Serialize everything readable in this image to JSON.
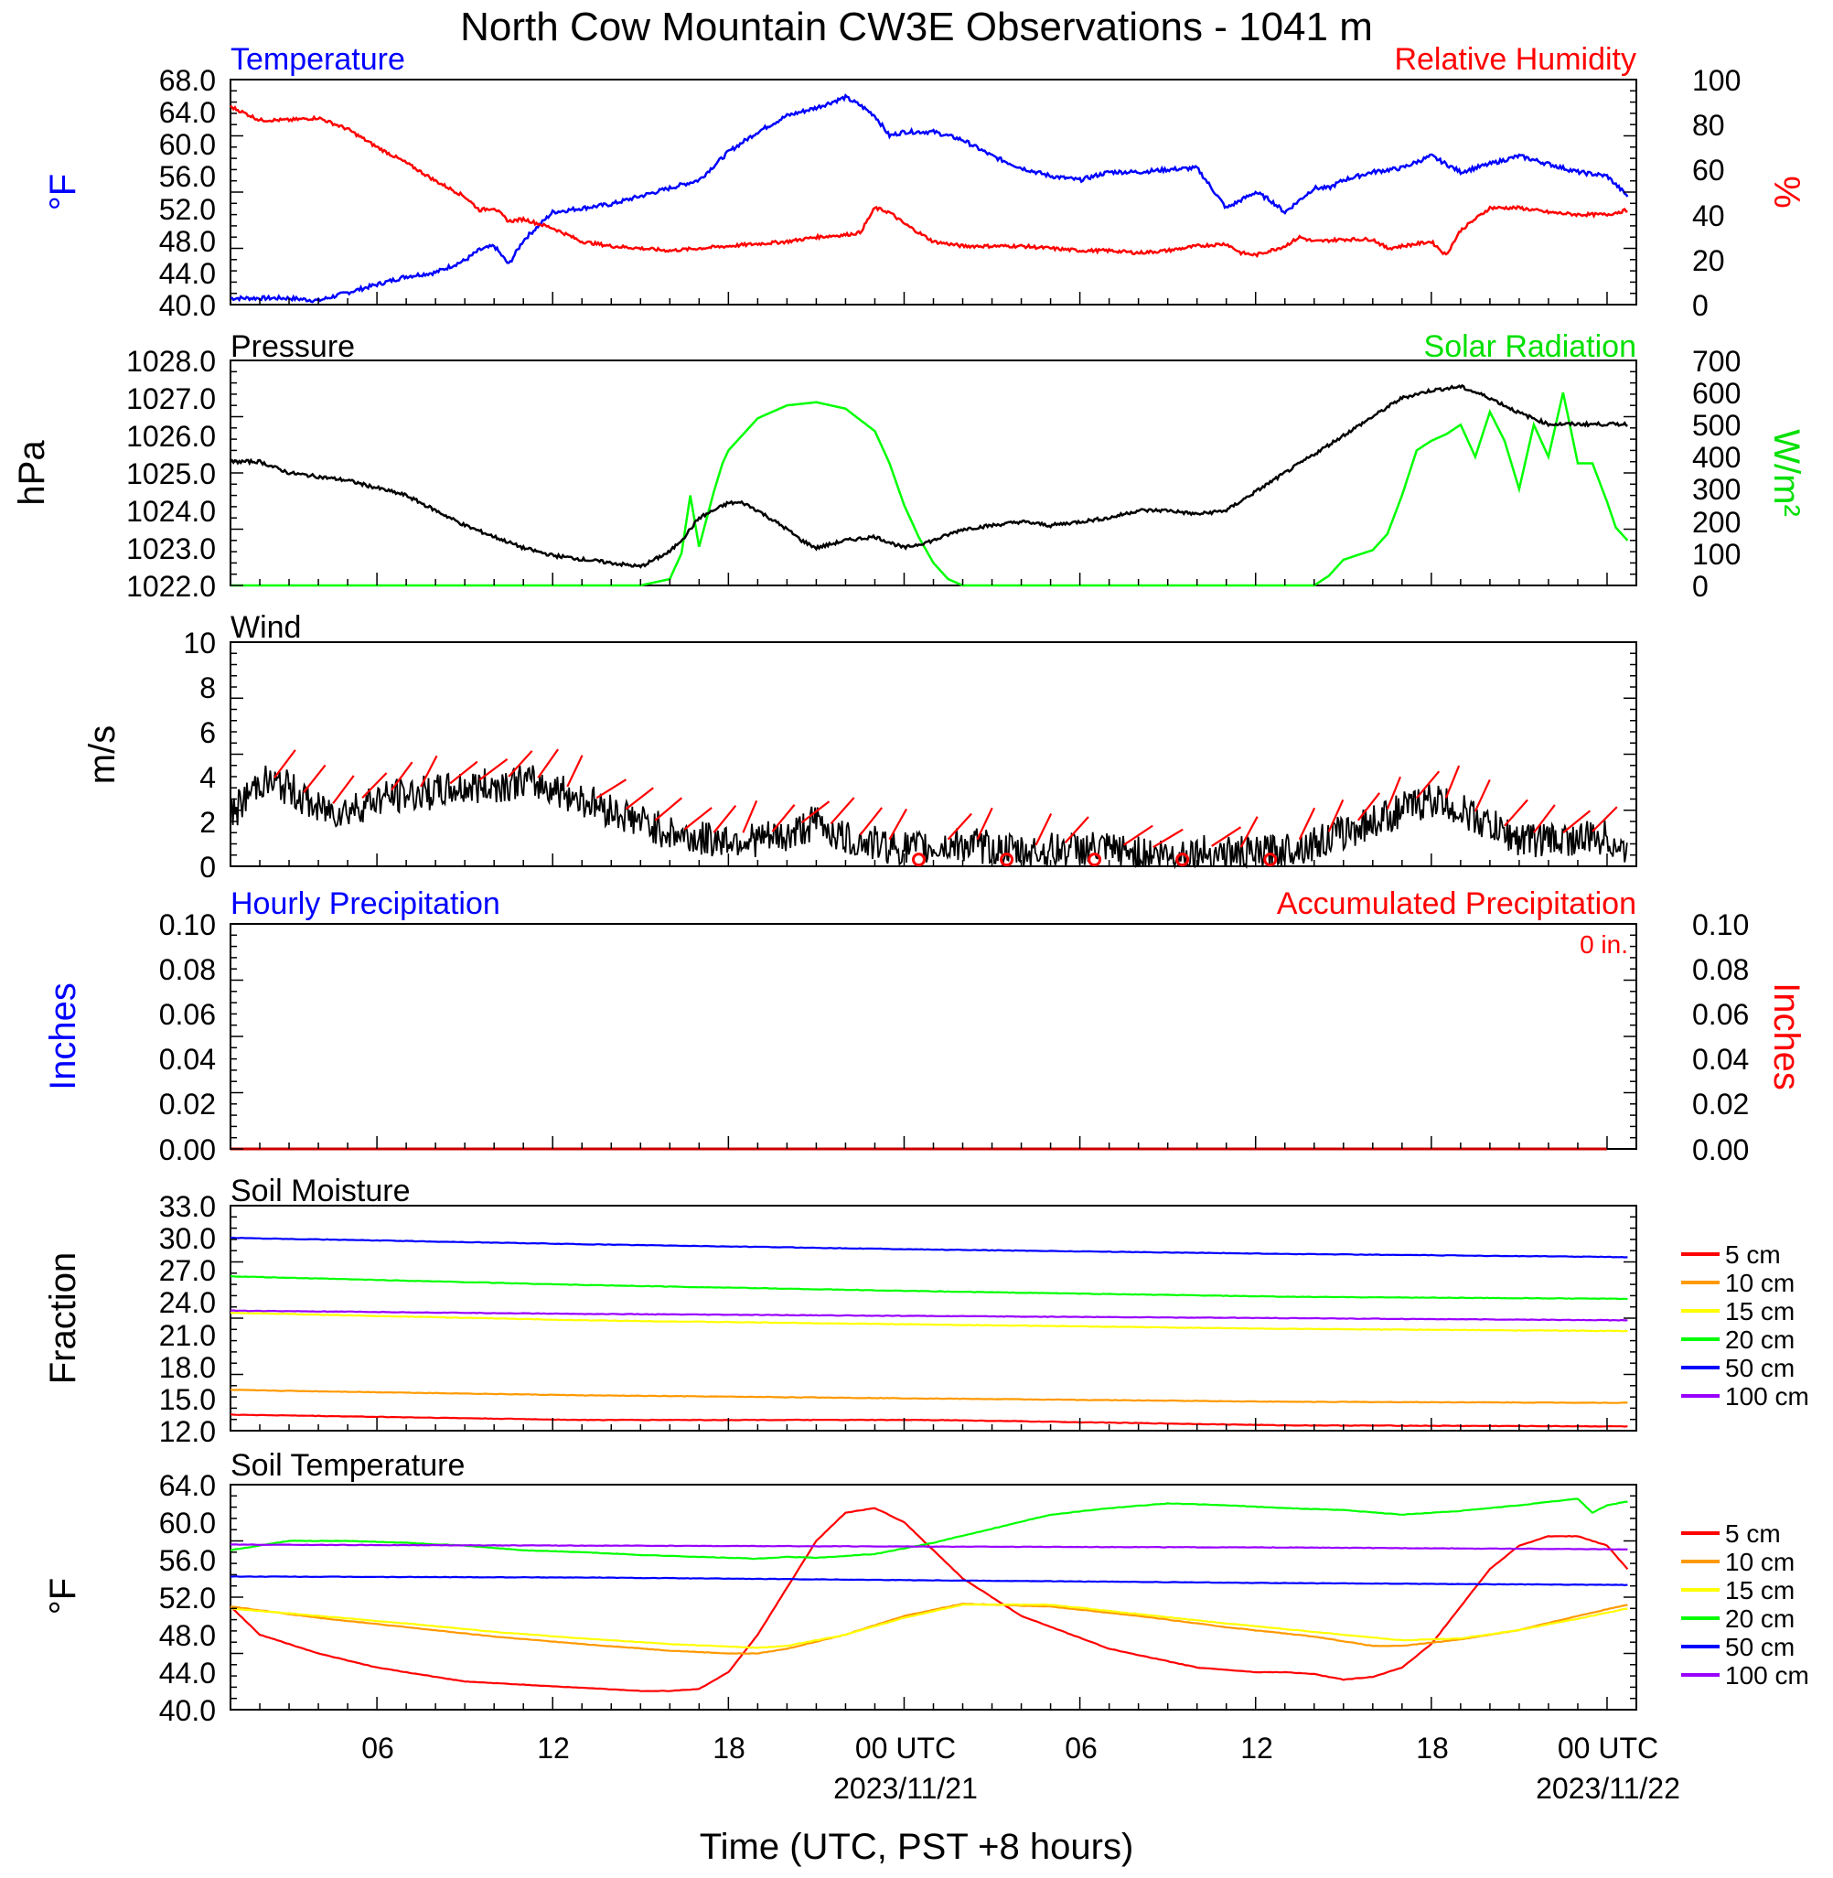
{
  "title": "North Cow Mountain CW3E Observations - 1041 m",
  "xaxis": {
    "label": "Time (UTC, PST +8 hours)",
    "ticks": [
      "06",
      "12",
      "18",
      "00 UTC",
      "06",
      "12",
      "18",
      "00 UTC"
    ],
    "dates": [
      "2023/11/21",
      "2023/11/22"
    ]
  },
  "colors": {
    "blue": "#0000ff",
    "red": "#ff0000",
    "green": "#00ff00",
    "black": "#000000",
    "orange": "#ff9900",
    "yellow": "#ffff00",
    "purple": "#9900ff"
  },
  "panels": {
    "temp_rh": {
      "left_title": "Temperature",
      "right_title": "Relative Humidity",
      "left_unit": "°F",
      "right_unit": "%",
      "left_ticks": [
        "68.0",
        "64.0",
        "60.0",
        "56.0",
        "52.0",
        "48.0",
        "44.0",
        "40.0"
      ],
      "right_ticks": [
        "100",
        "80",
        "60",
        "40",
        "20",
        "0"
      ]
    },
    "pressure_solar": {
      "left_title": "Pressure",
      "right_title": "Solar Radiation",
      "left_unit": "hPa",
      "right_unit": "W/m²",
      "left_ticks": [
        "1028.0",
        "1027.0",
        "1026.0",
        "1025.0",
        "1024.0",
        "1023.0",
        "1022.0"
      ],
      "right_ticks": [
        "700",
        "600",
        "500",
        "400",
        "300",
        "200",
        "100",
        "0"
      ]
    },
    "wind": {
      "left_title": "Wind",
      "left_unit": "m/s",
      "left_ticks": [
        "10",
        "8",
        "6",
        "4",
        "2",
        "0"
      ]
    },
    "precip": {
      "left_title": "Hourly Precipitation",
      "right_title": "Accumulated Precipitation",
      "left_unit": "Inches",
      "right_unit": "Inches",
      "accumulated_total": "0 in.",
      "left_ticks": [
        "0.10",
        "0.08",
        "0.06",
        "0.04",
        "0.02",
        "0.00"
      ],
      "right_ticks": [
        "0.10",
        "0.08",
        "0.06",
        "0.04",
        "0.02",
        "0.00"
      ]
    },
    "soil_moisture": {
      "left_title": "Soil Moisture",
      "left_unit": "Fraction",
      "left_ticks": [
        "33.0",
        "30.0",
        "27.0",
        "24.0",
        "21.0",
        "18.0",
        "15.0",
        "12.0"
      ],
      "legend": [
        "5 cm",
        "10 cm",
        "15 cm",
        "20 cm",
        "50 cm",
        "100 cm"
      ]
    },
    "soil_temp": {
      "left_title": "Soil Temperature",
      "left_unit": "°F",
      "left_ticks": [
        "64.0",
        "60.0",
        "56.0",
        "52.0",
        "48.0",
        "44.0",
        "40.0"
      ],
      "legend": [
        "5 cm",
        "10 cm",
        "15 cm",
        "20 cm",
        "50 cm",
        "100 cm"
      ]
    }
  },
  "chart_data": [
    {
      "type": "line",
      "title": "Temperature / Relative Humidity",
      "x_unit": "hours since 2023-11-20 01 UTC",
      "ylim_left": [
        40,
        68
      ],
      "ylim_right": [
        0,
        100
      ],
      "series": [
        {
          "name": "Temperature",
          "axis": "left",
          "color": "#0000ff",
          "x": [
            0,
            2,
            3,
            4,
            5,
            6,
            7,
            8,
            8.5,
            9,
            9.5,
            10,
            11,
            12,
            13,
            14,
            15,
            16,
            17,
            18,
            19,
            20,
            21,
            21.5,
            22,
            22.5,
            23,
            24,
            25,
            26,
            27,
            28,
            29,
            30,
            31,
            32,
            33,
            34,
            35,
            35.5,
            36,
            37,
            37.5,
            38,
            39,
            40,
            41,
            41.5,
            42,
            43,
            44,
            45,
            46,
            47,
            47.7
          ],
          "y": [
            40.8,
            40.8,
            40.5,
            41.5,
            42.5,
            43.5,
            44,
            45.5,
            46.8,
            47.3,
            45,
            48,
            51.5,
            52,
            52.5,
            53.5,
            54.5,
            55.5,
            59,
            61.5,
            63.5,
            64.5,
            65.8,
            64.8,
            63.5,
            61,
            61.5,
            61.5,
            60.5,
            58.5,
            57,
            56,
            55.5,
            56.5,
            56.5,
            56.8,
            57,
            52,
            54,
            53,
            51.5,
            54.5,
            54.5,
            55.5,
            56.5,
            57,
            58.5,
            57.5,
            56.5,
            57.5,
            58.5,
            57.5,
            56.5,
            56,
            53.5
          ]
        },
        {
          "name": "Relative Humidity",
          "axis": "right",
          "color": "#ff0000",
          "x": [
            0,
            1,
            2,
            3,
            4,
            5,
            6,
            7,
            8,
            8.5,
            9,
            9.5,
            10,
            11,
            12,
            13,
            14,
            15,
            16,
            17,
            18,
            19,
            20,
            21,
            21.5,
            22,
            22.5,
            23,
            24,
            25,
            26,
            27,
            28,
            29,
            30,
            31,
            32,
            33,
            34,
            34.5,
            35,
            36,
            36.5,
            37,
            38,
            39,
            39.5,
            40,
            41,
            41.5,
            42,
            43,
            44,
            45,
            46,
            47,
            47.7
          ],
          "y": [
            88,
            82,
            82,
            83,
            78,
            70,
            63,
            55,
            48,
            42,
            43,
            37,
            38,
            34,
            28,
            26,
            25,
            24,
            25,
            26,
            27,
            28,
            30,
            31,
            32,
            43,
            41,
            36,
            28,
            26,
            26,
            26,
            25,
            24,
            24,
            23,
            24,
            26,
            27,
            23,
            22,
            26,
            30,
            28,
            29,
            29,
            25,
            26,
            28,
            22,
            33,
            43,
            43,
            41,
            40,
            40,
            42
          ]
        },
        {
          "name": "Pressure",
          "axis": "left2",
          "color": "#000000",
          "x": [
            0,
            1,
            2,
            3,
            4,
            5,
            6,
            7,
            8,
            9,
            10,
            11,
            12,
            13,
            14,
            15,
            15.5,
            16,
            17,
            17.5,
            18,
            19,
            19.5,
            20,
            21,
            22,
            23,
            24,
            25,
            26,
            27,
            28,
            29,
            30,
            31,
            32,
            33,
            34,
            35,
            36,
            37,
            38,
            39,
            40,
            41,
            42,
            43,
            44,
            45,
            46,
            47,
            47.7
          ],
          "y": [
            1025.3,
            1025.3,
            1025.0,
            1024.9,
            1024.8,
            1024.6,
            1024.4,
            1024.0,
            1023.6,
            1023.3,
            1023.0,
            1022.8,
            1022.7,
            1022.6,
            1022.5,
            1022.9,
            1023.3,
            1023.8,
            1024.2,
            1024.2,
            1024.0,
            1023.5,
            1023.2,
            1023.0,
            1023.2,
            1023.3,
            1023.0,
            1023.2,
            1023.5,
            1023.6,
            1023.7,
            1023.6,
            1023.7,
            1023.8,
            1024.0,
            1024.0,
            1023.9,
            1024.0,
            1024.5,
            1025.0,
            1025.5,
            1026.0,
            1026.5,
            1027.0,
            1027.2,
            1027.3,
            1027.0,
            1026.6,
            1026.3,
            1026.3,
            1026.3,
            1026.3
          ]
        },
        {
          "name": "Solar Radiation",
          "axis": "right2",
          "color": "#00ff00",
          "x": [
            0,
            14,
            15,
            15.4,
            15.7,
            16,
            16.5,
            16.8,
            17,
            17.5,
            18,
            19,
            20,
            21,
            22,
            22.5,
            23,
            23.5,
            24,
            24.5,
            25,
            37,
            37.5,
            38,
            39,
            39.5,
            40,
            40.5,
            41,
            41.5,
            42,
            42.5,
            43,
            43.5,
            44,
            44.5,
            45,
            45.5,
            46,
            46.5,
            47,
            47.3,
            47.7
          ],
          "y": [
            0,
            0,
            20,
            100,
            280,
            120,
            290,
            380,
            420,
            470,
            520,
            560,
            570,
            550,
            480,
            380,
            250,
            150,
            70,
            20,
            0,
            0,
            30,
            80,
            110,
            160,
            280,
            420,
            450,
            470,
            500,
            400,
            540,
            450,
            300,
            500,
            400,
            600,
            380,
            380,
            260,
            180,
            140
          ]
        },
        {
          "name": "Wind Speed",
          "axis": "left3",
          "color": "#000000",
          "x": [
            0,
            1,
            2,
            3,
            4,
            5,
            6,
            7,
            8,
            9,
            10,
            11,
            12,
            13,
            14,
            15,
            16,
            17,
            18,
            19,
            20,
            21,
            22,
            23,
            24,
            25,
            26,
            27,
            28,
            29,
            30,
            31,
            32,
            33,
            34,
            35,
            36,
            37,
            38,
            39,
            40,
            41,
            42,
            43,
            44,
            45,
            46,
            47,
            47.7
          ],
          "y": [
            2.2,
            3.8,
            3.5,
            2.5,
            2.5,
            3.0,
            3.2,
            3.3,
            3.5,
            3.6,
            3.8,
            3.5,
            3.0,
            2.5,
            2.0,
            1.5,
            1.2,
            1.2,
            1.2,
            1.3,
            2.0,
            1.2,
            1.0,
            0.8,
            0.8,
            1.0,
            0.8,
            0.6,
            0.7,
            0.8,
            0.7,
            0.6,
            0.5,
            0.6,
            0.6,
            0.5,
            0.8,
            1.0,
            1.5,
            2.0,
            2.5,
            3.0,
            2.5,
            1.8,
            1.2,
            1.2,
            1.2,
            1.3,
            0.5
          ]
        },
        {
          "name": "Accumulated Precipitation",
          "axis": "left4",
          "color": "#ff0000",
          "x": [
            0,
            47.7
          ],
          "y": [
            0,
            0
          ]
        }
      ]
    },
    {
      "type": "line",
      "title": "Soil Moisture",
      "ylim": [
        12,
        33
      ],
      "series": [
        {
          "name": "5 cm",
          "color": "#ff0000",
          "x": [
            0,
            12,
            24,
            36,
            47.7
          ],
          "y": [
            13.5,
            13.0,
            13.0,
            12.5,
            12.4
          ]
        },
        {
          "name": "10 cm",
          "color": "#ff9900",
          "x": [
            0,
            12,
            24,
            36,
            47.7
          ],
          "y": [
            15.8,
            15.3,
            15.0,
            14.7,
            14.6
          ]
        },
        {
          "name": "15 cm",
          "color": "#ffff00",
          "x": [
            0,
            12,
            24,
            36,
            47.7
          ],
          "y": [
            23.0,
            22.3,
            21.9,
            21.5,
            21.3
          ]
        },
        {
          "name": "20 cm",
          "color": "#00ff00",
          "x": [
            0,
            12,
            24,
            36,
            47.7
          ],
          "y": [
            26.4,
            25.6,
            25.0,
            24.5,
            24.3
          ]
        },
        {
          "name": "50 cm",
          "color": "#0000ff",
          "x": [
            0,
            12,
            24,
            36,
            47.7
          ],
          "y": [
            30.0,
            29.4,
            28.9,
            28.5,
            28.2
          ]
        },
        {
          "name": "100 cm",
          "color": "#9900ff",
          "x": [
            0,
            12,
            24,
            36,
            47.7
          ],
          "y": [
            23.2,
            22.9,
            22.7,
            22.5,
            22.3
          ]
        }
      ]
    },
    {
      "type": "line",
      "title": "Soil Temperature",
      "ylim": [
        40,
        64
      ],
      "series": [
        {
          "name": "5 cm",
          "color": "#ff0000",
          "x": [
            0,
            1,
            3,
            5,
            8,
            11,
            14,
            15,
            16,
            17,
            18,
            19,
            20,
            21,
            22,
            23,
            24,
            25,
            27,
            30,
            33,
            35,
            36,
            37,
            38,
            39,
            40,
            41,
            42,
            43,
            44,
            45,
            46,
            47,
            47.7
          ],
          "y": [
            51,
            48,
            46,
            44.5,
            43,
            42.5,
            42,
            42,
            42.2,
            44,
            48,
            53,
            58,
            61,
            61.5,
            60,
            57,
            54,
            50,
            46.5,
            44.5,
            44,
            44,
            43.8,
            43.2,
            43.5,
            44.5,
            47,
            51,
            55,
            57.5,
            58.5,
            58.5,
            57.5,
            55
          ]
        },
        {
          "name": "10 cm",
          "color": "#ff9900",
          "x": [
            0,
            3,
            6,
            9,
            12,
            15,
            17,
            18,
            19,
            21,
            23,
            25,
            28,
            31,
            34,
            37,
            38,
            39,
            40,
            42,
            44,
            46,
            47.7
          ],
          "y": [
            51,
            49.8,
            48.8,
            47.8,
            47,
            46.3,
            46,
            46,
            46.5,
            48,
            50,
            51.3,
            51,
            50,
            48.8,
            47.8,
            47.3,
            46.8,
            46.8,
            47.5,
            48.5,
            50,
            51.2
          ]
        },
        {
          "name": "15 cm",
          "color": "#ffff00",
          "x": [
            0,
            3,
            6,
            9,
            12,
            15,
            18,
            19,
            21,
            23,
            25,
            28,
            31,
            34,
            37,
            40,
            42,
            44,
            46,
            47.7
          ],
          "y": [
            50.8,
            50,
            49.2,
            48.3,
            47.6,
            47,
            46.6,
            46.8,
            48,
            49.8,
            51.2,
            51.2,
            50.2,
            49.2,
            48.3,
            47.4,
            47.6,
            48.5,
            49.7,
            50.8
          ]
        },
        {
          "name": "20 cm",
          "color": "#00ff00",
          "x": [
            0,
            2,
            4,
            6,
            8,
            10,
            12,
            14,
            16,
            18,
            19,
            20,
            22,
            24,
            26,
            28,
            30,
            32,
            34,
            36,
            38,
            40,
            42,
            44,
            46,
            46.5,
            47,
            47.7
          ],
          "y": [
            57,
            58,
            58,
            57.8,
            57.5,
            57,
            56.8,
            56.5,
            56.3,
            56.1,
            56.3,
            56.2,
            56.6,
            57.8,
            59.3,
            60.8,
            61.5,
            62,
            61.8,
            61.5,
            61.3,
            60.8,
            61.2,
            61.8,
            62.5,
            61,
            61.8,
            62.2
          ]
        },
        {
          "name": "50 cm",
          "color": "#0000ff",
          "x": [
            0,
            12,
            24,
            36,
            47.7
          ],
          "y": [
            54.2,
            54.1,
            53.8,
            53.5,
            53.3
          ]
        },
        {
          "name": "100 cm",
          "color": "#9900ff",
          "x": [
            0,
            12,
            24,
            36,
            47.7
          ],
          "y": [
            57.6,
            57.5,
            57.4,
            57.3,
            57.1
          ]
        }
      ]
    }
  ]
}
